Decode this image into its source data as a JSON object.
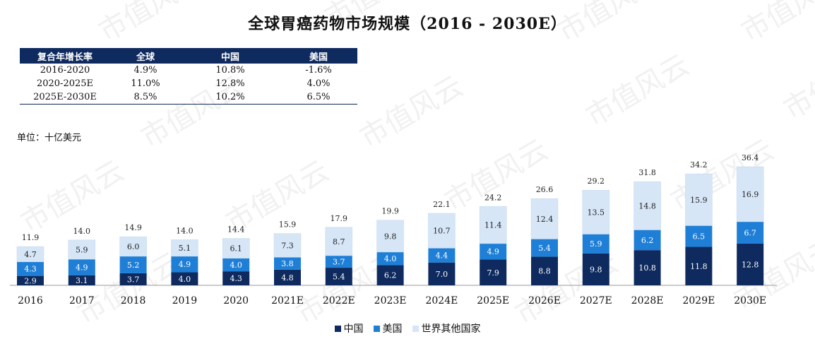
{
  "title": "全球胃癌药物市场规模（2016 - 2030E）",
  "unit_label": "单位：十亿美元",
  "watermark": "市值风云",
  "cagr_table": {
    "headers": [
      "复合年增长率",
      "全球",
      "中国",
      "美国"
    ],
    "rows": [
      [
        "2016-2020",
        "4.9%",
        "10.8%",
        "-1.6%"
      ],
      [
        "2020-2025E",
        "11.0%",
        "12.8%",
        "4.0%"
      ],
      [
        "2025E-2030E",
        "8.5%",
        "10.2%",
        "6.5%"
      ]
    ]
  },
  "colors": {
    "china": "#0e2a5e",
    "usa": "#1f7fd6",
    "rest": "#d6e6f7",
    "header_bg": "#0e2a5e"
  },
  "chart_data": {
    "type": "bar",
    "stacked": true,
    "categories": [
      "2016",
      "2017",
      "2018",
      "2019",
      "2020",
      "2021E",
      "2022E",
      "2023E",
      "2024E",
      "2025E",
      "2026E",
      "2027E",
      "2028E",
      "2029E",
      "2030E"
    ],
    "series": [
      {
        "name": "中国",
        "values": [
          2.9,
          3.1,
          3.7,
          4.0,
          4.3,
          4.8,
          5.4,
          6.2,
          7.0,
          7.9,
          8.8,
          9.8,
          10.8,
          11.8,
          12.8
        ]
      },
      {
        "name": "美国",
        "values": [
          4.3,
          4.9,
          5.2,
          4.9,
          4.0,
          3.8,
          3.7,
          4.0,
          4.4,
          4.9,
          5.4,
          5.9,
          6.2,
          6.5,
          6.7
        ]
      },
      {
        "name": "世界其他国家",
        "values": [
          4.7,
          5.9,
          6.0,
          5.1,
          6.1,
          7.3,
          8.7,
          9.8,
          10.7,
          11.4,
          12.4,
          13.5,
          14.8,
          15.9,
          16.9
        ]
      }
    ],
    "totals": [
      "11.9",
      "14.0",
      "14.9",
      "14.0",
      "14.4",
      "15.9",
      "17.9",
      "19.9",
      "22.1",
      "24.2",
      "26.6",
      "29.2",
      "31.8",
      "34.2",
      "36.4"
    ],
    "legend": [
      "中国",
      "美国",
      "世界其他国家"
    ],
    "legend_position": "bottom",
    "ylim": [
      0,
      36.4
    ],
    "grid": false
  }
}
